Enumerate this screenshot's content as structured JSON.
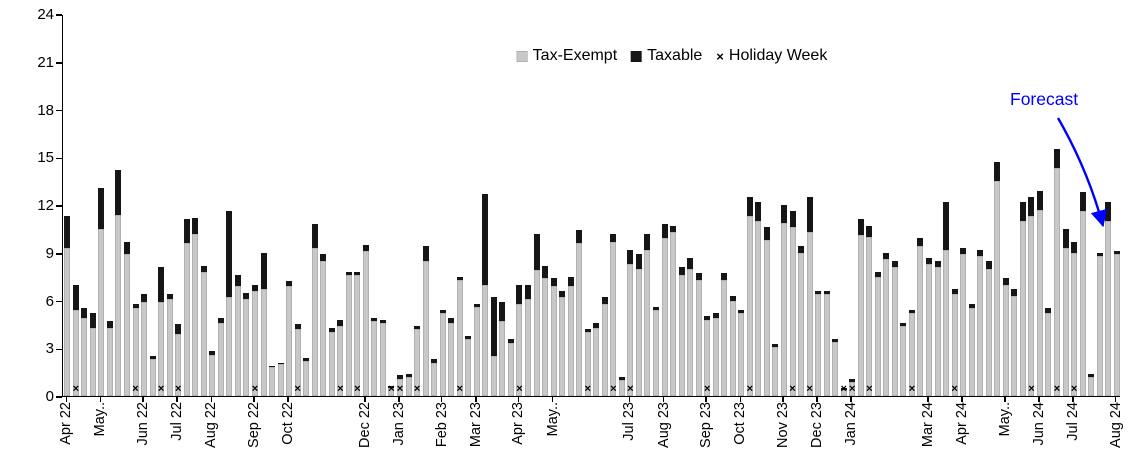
{
  "annotation": {
    "text": "Forecast",
    "color": "#0000fe"
  },
  "legend": {
    "items": [
      {
        "label": "Tax-Exempt",
        "marker": "square",
        "color": "#c8c8c8"
      },
      {
        "label": "Taxable",
        "marker": "square",
        "color": "#161616"
      },
      {
        "label": "Holiday Week",
        "marker": "x",
        "color": "#000000"
      }
    ]
  },
  "chart_data": {
    "type": "bar",
    "stacked": true,
    "title": "",
    "xlabel": "",
    "ylabel": "",
    "ylim": [
      0,
      24
    ],
    "yticks": [
      0,
      3,
      6,
      9,
      12,
      15,
      18,
      21,
      24
    ],
    "grid": false,
    "legend_position": "top-center",
    "holiday_symbol": "×",
    "series_names": [
      "Tax-Exempt",
      "Taxable"
    ],
    "tax_exempt": [
      9.3,
      5.4,
      4.9,
      4.3,
      10.5,
      4.3,
      11.4,
      8.9,
      5.5,
      5.9,
      2.3,
      5.9,
      6.1,
      3.9,
      9.6,
      10.2,
      7.8,
      2.6,
      4.6,
      6.2,
      6.9,
      6.1,
      6.6,
      6.7,
      1.8,
      2.0,
      6.9,
      4.2,
      2.2,
      9.3,
      8.5,
      4.0,
      4.4,
      7.6,
      7.6,
      9.1,
      4.7,
      4.6,
      0.5,
      1.1,
      1.2,
      4.2,
      8.5,
      2.1,
      5.2,
      4.6,
      7.3,
      3.6,
      5.6,
      7.0,
      2.5,
      4.7,
      3.3,
      5.8,
      6.1,
      7.9,
      7.4,
      6.9,
      6.2,
      6.9,
      9.6,
      4.0,
      4.3,
      5.8,
      9.7,
      1.0,
      8.3,
      8.0,
      9.2,
      5.4,
      9.9,
      10.3,
      7.6,
      8.0,
      7.3,
      4.8,
      4.9,
      7.3,
      6.0,
      5.2,
      11.3,
      11.0,
      9.8,
      3.1,
      10.9,
      10.6,
      9.0,
      10.3,
      6.4,
      6.4,
      3.4,
      0.4,
      0.9,
      10.1,
      10.0,
      7.5,
      8.6,
      8.1,
      4.4,
      5.2,
      9.4,
      8.3,
      8.1,
      9.2,
      6.4,
      8.9,
      5.5,
      8.8,
      8.0,
      13.5,
      7.0,
      6.3,
      11.0,
      11.3,
      11.7,
      5.2,
      14.3,
      9.3,
      9.0,
      11.6,
      1.2,
      8.8,
      11.0,
      8.9
    ],
    "taxable": [
      2.0,
      1.6,
      0.6,
      0.9,
      2.6,
      0.4,
      2.8,
      0.8,
      0.3,
      0.5,
      0.2,
      2.2,
      0.3,
      0.6,
      1.5,
      1.0,
      0.4,
      0.2,
      0.3,
      5.4,
      0.7,
      0.4,
      0.4,
      2.3,
      0.1,
      0.1,
      0.3,
      0.3,
      0.2,
      1.5,
      0.4,
      0.3,
      0.4,
      0.2,
      0.2,
      0.4,
      0.2,
      0.2,
      0.1,
      0.2,
      0.2,
      0.2,
      0.9,
      0.2,
      0.2,
      0.3,
      0.2,
      0.2,
      0.2,
      5.7,
      3.7,
      1.2,
      0.3,
      1.2,
      0.9,
      2.3,
      0.8,
      0.5,
      0.4,
      0.6,
      0.8,
      0.2,
      0.3,
      0.4,
      0.5,
      0.2,
      0.9,
      0.9,
      1.0,
      0.2,
      0.9,
      0.4,
      0.5,
      0.7,
      0.4,
      0.2,
      0.3,
      0.4,
      0.3,
      0.2,
      1.2,
      1.2,
      0.8,
      0.2,
      1.1,
      1.0,
      0.4,
      2.2,
      0.2,
      0.2,
      0.2,
      0.1,
      0.2,
      1.0,
      0.7,
      0.3,
      0.4,
      0.4,
      0.2,
      0.2,
      0.5,
      0.4,
      0.4,
      3.0,
      0.3,
      0.4,
      0.3,
      0.4,
      0.5,
      1.2,
      0.4,
      0.4,
      1.2,
      1.2,
      1.2,
      0.3,
      1.2,
      1.2,
      0.7,
      1.2,
      0.2,
      0.2,
      1.2,
      0.2
    ],
    "holiday_weeks": [
      1,
      8,
      11,
      13,
      22,
      27,
      32,
      34,
      38,
      39,
      41,
      46,
      53,
      61,
      64,
      66,
      75,
      80,
      85,
      87,
      91,
      92,
      94,
      99,
      104,
      113,
      116,
      118
    ],
    "xticks": [
      {
        "label": "Apr 22",
        "week": 0
      },
      {
        "label": "May..",
        "week": 4
      },
      {
        "label": "Jun 22",
        "week": 9
      },
      {
        "label": "Jul 22",
        "week": 13
      },
      {
        "label": "Aug 22",
        "week": 17
      },
      {
        "label": "Sep 22",
        "week": 22
      },
      {
        "label": "Oct 22",
        "week": 26
      },
      {
        "label": "Dec 22",
        "week": 35
      },
      {
        "label": "Jan 23",
        "week": 39
      },
      {
        "label": "Feb 23",
        "week": 44
      },
      {
        "label": "Mar 23",
        "week": 48
      },
      {
        "label": "Apr 23",
        "week": 53
      },
      {
        "label": "May..",
        "week": 57
      },
      {
        "label": "Jul 23",
        "week": 66
      },
      {
        "label": "Aug 23",
        "week": 70
      },
      {
        "label": "Sep 23",
        "week": 75
      },
      {
        "label": "Oct 23",
        "week": 79
      },
      {
        "label": "Nov 23",
        "week": 84
      },
      {
        "label": "Dec 23",
        "week": 88
      },
      {
        "label": "Jan 24",
        "week": 92
      },
      {
        "label": "Mar 24",
        "week": 101
      },
      {
        "label": "Apr 24",
        "week": 105
      },
      {
        "label": "May..",
        "week": 110
      },
      {
        "label": "Jun 24",
        "week": 114
      },
      {
        "label": "Jul 24",
        "week": 118
      },
      {
        "label": "Aug 24",
        "week": 123
      }
    ],
    "colors": {
      "tax_exempt": "#c8c8c8",
      "taxable": "#161616",
      "axis": "#000000"
    }
  }
}
